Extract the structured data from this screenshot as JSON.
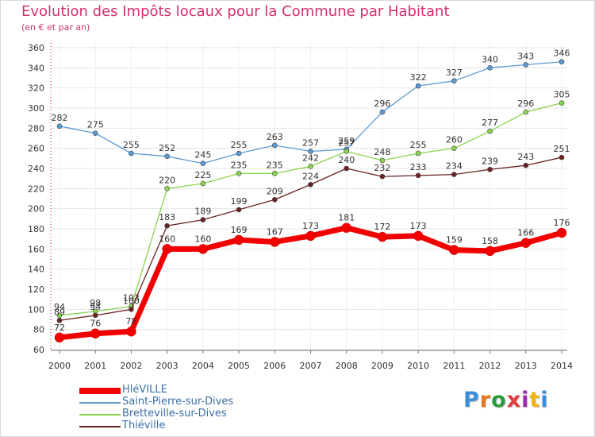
{
  "header": {
    "title": "Evolution des Impôts locaux pour la Commune par Habitant",
    "subtitle": "(en € et par an)"
  },
  "logo": {
    "text": "Proxiti",
    "colors": [
      "#3b8fd8",
      "#e8771e",
      "#2a9d3a",
      "#e23b3b",
      "#9c27b0",
      "#f2b31b",
      "#3b8fd8"
    ]
  },
  "chart_data": {
    "type": "line",
    "title": "Evolution des Impôts locaux pour la Commune par Habitant",
    "subtitle": "(en € et par an)",
    "xlabel": "",
    "ylabel": "",
    "x": [
      2000,
      2001,
      2002,
      2003,
      2004,
      2005,
      2006,
      2007,
      2008,
      2009,
      2010,
      2011,
      2012,
      2013,
      2014
    ],
    "ylim": [
      60,
      360
    ],
    "yticks": [
      60,
      80,
      100,
      120,
      140,
      160,
      180,
      200,
      220,
      240,
      260,
      280,
      300,
      320,
      340,
      360
    ],
    "grid": true,
    "legend_position": "bottom-left",
    "series": [
      {
        "name": "HléVILLE",
        "color": "#f20000",
        "emphasis": true,
        "values": [
          72,
          76,
          78,
          160,
          160,
          169,
          167,
          173,
          181,
          172,
          173,
          159,
          158,
          166,
          176
        ]
      },
      {
        "name": "Saint-Pierre-sur-Dives",
        "color": "#5b9bd5",
        "emphasis": false,
        "values": [
          282,
          275,
          255,
          252,
          245,
          255,
          263,
          257,
          259,
          296,
          322,
          327,
          340,
          343,
          346
        ]
      },
      {
        "name": "Bretteville-sur-Dives",
        "color": "#8ad44e",
        "emphasis": false,
        "values": [
          94,
          98,
          103,
          220,
          225,
          235,
          235,
          242,
          257,
          248,
          255,
          260,
          277,
          296,
          305
        ]
      },
      {
        "name": "Thiéville",
        "color": "#6b2222",
        "emphasis": false,
        "values": [
          89,
          94,
          100,
          183,
          189,
          199,
          209,
          224,
          240,
          232,
          233,
          234,
          239,
          243,
          251
        ]
      }
    ]
  }
}
